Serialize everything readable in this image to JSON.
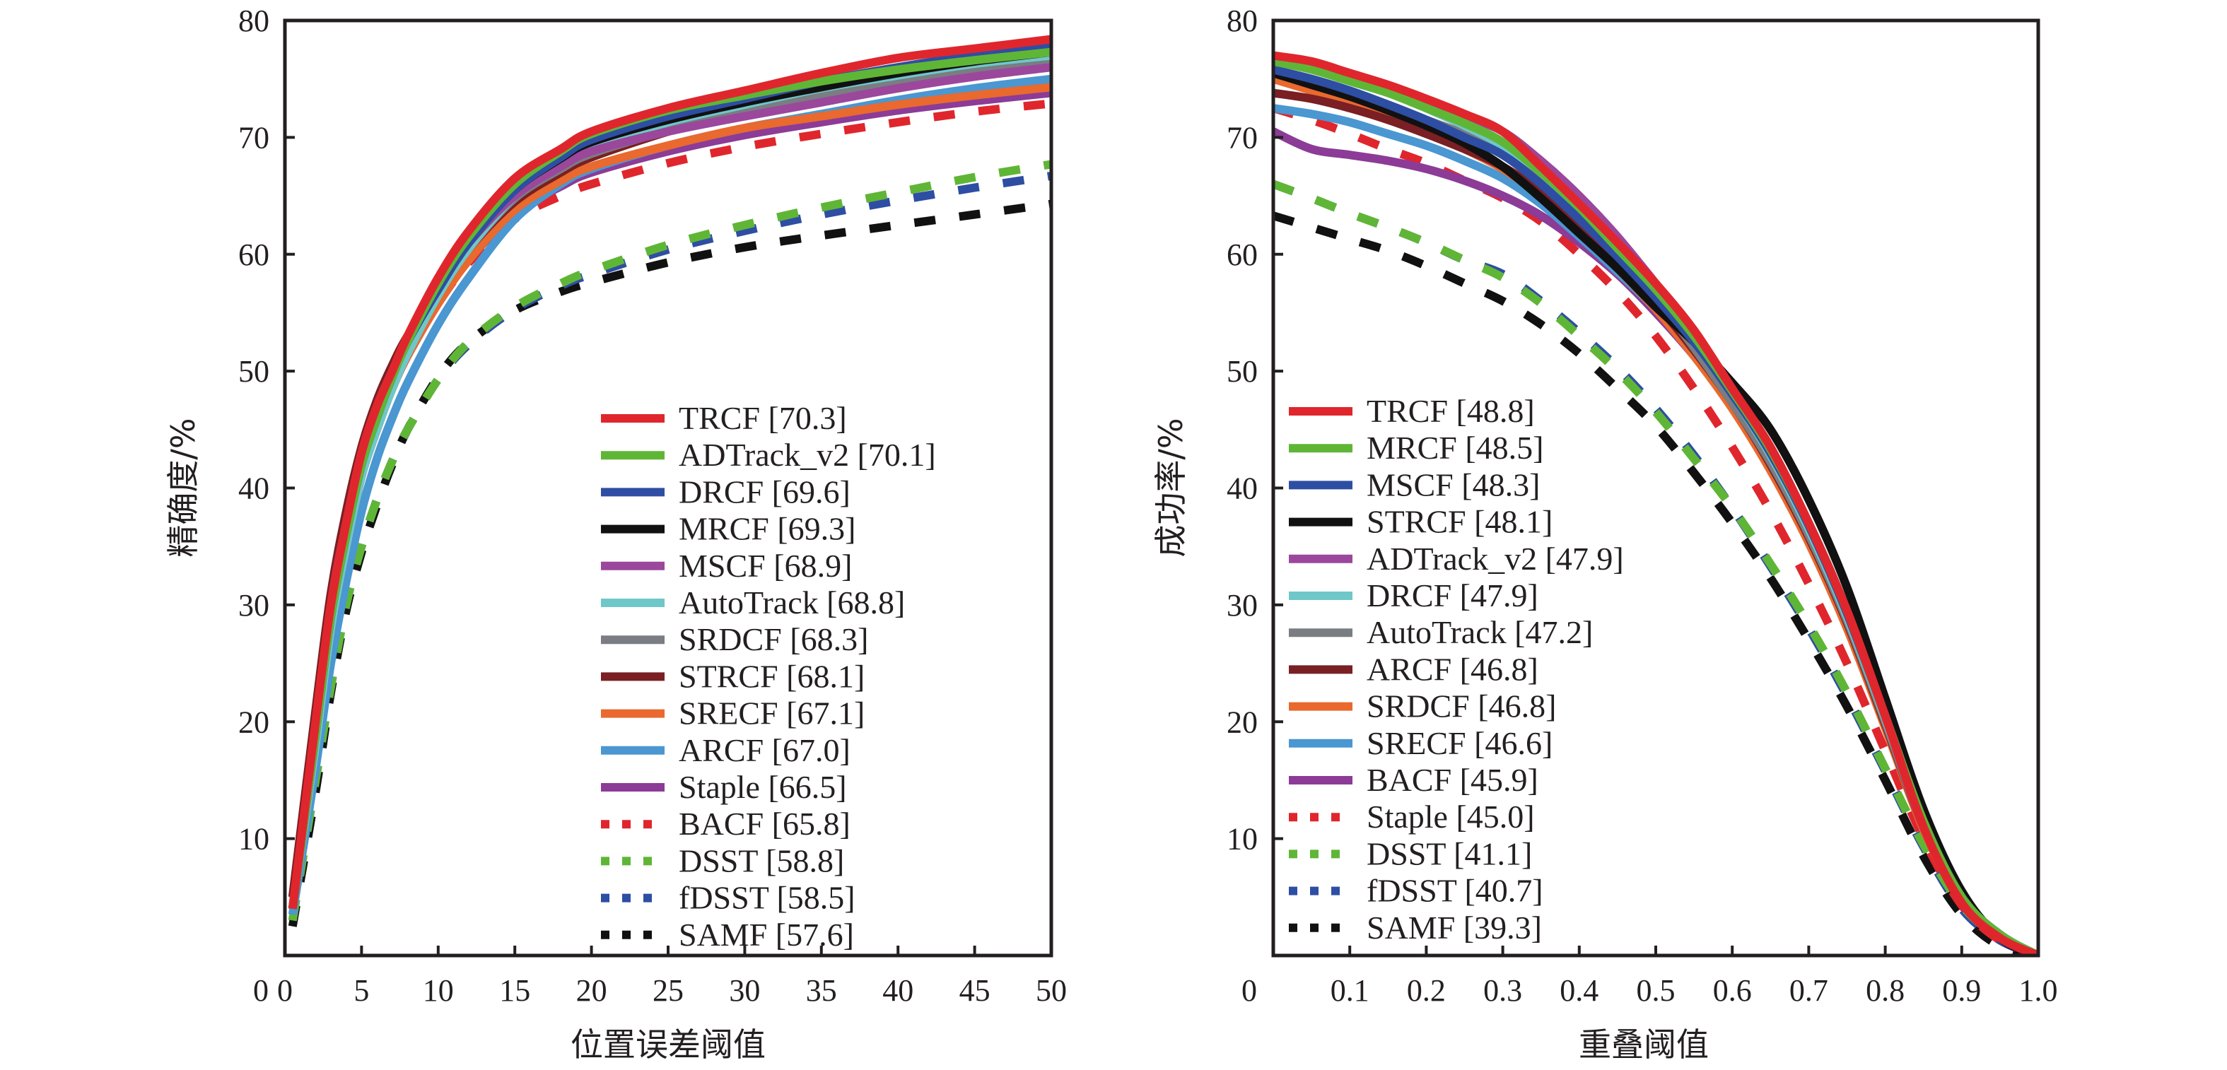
{
  "chart_data": [
    {
      "type": "line",
      "title": "",
      "xlabel": "位置误差阈值",
      "ylabel": "精确度/%",
      "xlim": [
        0,
        50
      ],
      "ylim": [
        0,
        80
      ],
      "xticks": [
        "0",
        "5",
        "10",
        "15",
        "20",
        "25",
        "30",
        "35",
        "40",
        "45",
        "50"
      ],
      "xtick_values": [
        0,
        5,
        10,
        15,
        20,
        25,
        30,
        35,
        40,
        45,
        50
      ],
      "yticks": [
        "10",
        "20",
        "30",
        "40",
        "50",
        "60",
        "70",
        "80"
      ],
      "ytick_values": [
        10,
        20,
        30,
        40,
        50,
        60,
        70,
        80
      ],
      "x_origin_label": "0",
      "grid": false,
      "legend_position": "lower-right",
      "x": [
        0.5,
        2,
        3,
        4,
        5,
        6,
        7,
        8,
        10,
        12,
        15,
        18,
        20,
        25,
        30,
        35,
        40,
        45,
        50
      ],
      "series": [
        {
          "name": "TRCF",
          "score": "70.3",
          "color": "#e0262d",
          "dash": "solid",
          "values": [
            4,
            20,
            30,
            37,
            43,
            47,
            50,
            53,
            58,
            62,
            66.5,
            69,
            70.5,
            72.5,
            74,
            75.5,
            76.8,
            77.6,
            78.4
          ]
        },
        {
          "name": "ADTrack_v2",
          "score": "70.1",
          "color": "#5fb636",
          "dash": "solid",
          "values": [
            4,
            19,
            29,
            36,
            42,
            46,
            49.5,
            52.5,
            57.5,
            61.5,
            66,
            68.8,
            70.3,
            72.3,
            73.6,
            74.8,
            75.8,
            76.6,
            77.3
          ]
        },
        {
          "name": "DRCF",
          "score": "69.6",
          "color": "#2e4ea3",
          "dash": "solid",
          "values": [
            4,
            19,
            29,
            36,
            42,
            46,
            49.5,
            52.5,
            57,
            61,
            65.5,
            68.3,
            69.8,
            71.8,
            73.3,
            74.8,
            76,
            77,
            77.8
          ]
        },
        {
          "name": "MRCF",
          "score": "69.3",
          "color": "#111111",
          "dash": "solid",
          "values": [
            4,
            19,
            29,
            36,
            42,
            46,
            49.5,
            52.5,
            57,
            61,
            65.5,
            68.2,
            69.6,
            71.5,
            73,
            74.3,
            75.5,
            76.5,
            77.3
          ]
        },
        {
          "name": "MSCF",
          "score": "68.9",
          "color": "#9b479c",
          "dash": "solid",
          "values": [
            4,
            19,
            30,
            37,
            43,
            47,
            50,
            52.8,
            57.5,
            61,
            65,
            67.5,
            68.8,
            70.5,
            71.8,
            73,
            74.2,
            75.2,
            76
          ]
        },
        {
          "name": "AutoTrack",
          "score": "68.8",
          "color": "#6fc7c9",
          "dash": "solid",
          "values": [
            4,
            18,
            28,
            35,
            41,
            45,
            48.5,
            51.5,
            56.5,
            60.5,
            65,
            67.8,
            69.3,
            71.3,
            72.8,
            74.2,
            75.3,
            76.3,
            77
          ]
        },
        {
          "name": "SRDCF",
          "score": "68.3",
          "color": "#7a7d82",
          "dash": "solid",
          "values": [
            4,
            19,
            29,
            36,
            42,
            46,
            49.5,
            52.3,
            56.8,
            60.5,
            64.8,
            67.3,
            68.6,
            70.6,
            72.2,
            73.6,
            74.8,
            75.8,
            76.6
          ]
        },
        {
          "name": "STRCF",
          "score": "68.1",
          "color": "#7a1f23",
          "dash": "solid",
          "values": [
            5,
            21,
            31,
            38,
            43.5,
            47.5,
            50.5,
            53,
            57,
            60.5,
            64.5,
            67,
            68.3,
            70.5,
            72.3,
            73.8,
            75.5,
            76.8,
            78
          ]
        },
        {
          "name": "SRECF",
          "score": "67.1",
          "color": "#e9692e",
          "dash": "solid",
          "values": [
            4,
            18,
            28,
            35,
            41,
            45,
            48.5,
            51.3,
            55.8,
            59.5,
            63.8,
            66.3,
            67.5,
            69.3,
            70.8,
            71.8,
            72.8,
            73.6,
            74.3
          ]
        },
        {
          "name": "ARCF",
          "score": "67.0",
          "color": "#4a97d1",
          "dash": "solid",
          "values": [
            3.5,
            16,
            25,
            32,
            38,
            42.5,
            46,
            49,
            54,
            58,
            63,
            66,
            67.3,
            69.3,
            70.8,
            72,
            73.2,
            74.2,
            75
          ]
        },
        {
          "name": "Staple",
          "score": "66.5",
          "color": "#8c3b97",
          "dash": "solid",
          "values": [
            4,
            18,
            28,
            35,
            41,
            45,
            48.5,
            51.3,
            55.8,
            59.5,
            63.6,
            65.8,
            67,
            68.8,
            70.2,
            71.3,
            72.3,
            73.1,
            73.8
          ]
        },
        {
          "name": "BACF",
          "score": "65.8",
          "color": "#e0262d",
          "dash": "dashed",
          "values": [
            4,
            18,
            28,
            35,
            41,
            45,
            48.5,
            51.3,
            55.8,
            59.3,
            63,
            65,
            66,
            67.8,
            69.2,
            70.3,
            71.3,
            72.2,
            72.9
          ]
        },
        {
          "name": "DSST",
          "score": "58.8",
          "color": "#5fb636",
          "dash": "dashed",
          "values": [
            3,
            15,
            23,
            30,
            35,
            39,
            42.3,
            45,
            49.3,
            52.5,
            55.5,
            57.5,
            58.6,
            60.8,
            62.5,
            64,
            65.3,
            66.6,
            67.7
          ]
        },
        {
          "name": "fDSST",
          "score": "58.5",
          "color": "#2e4ea3",
          "dash": "dashed",
          "values": [
            3,
            15,
            23,
            30,
            35,
            39,
            42.3,
            45,
            49.3,
            52.3,
            55.3,
            57.3,
            58.3,
            60.4,
            62,
            63.4,
            64.6,
            65.7,
            66.7
          ]
        },
        {
          "name": "SAMF",
          "score": "57.6",
          "color": "#111111",
          "dash": "dashed",
          "values": [
            2.5,
            14,
            22.5,
            29.5,
            34.5,
            38.5,
            42,
            45,
            49.5,
            52.5,
            55.2,
            56.8,
            57.6,
            59.3,
            60.6,
            61.6,
            62.5,
            63.4,
            64.3
          ]
        }
      ]
    },
    {
      "type": "line",
      "title": "",
      "xlabel": "重叠阈值",
      "ylabel": "成功率/%",
      "xlim": [
        0,
        1
      ],
      "ylim": [
        0,
        80
      ],
      "xticks": [
        "0.1",
        "0.2",
        "0.3",
        "0.4",
        "0.5",
        "0.6",
        "0.7",
        "0.8",
        "0.9",
        "1.0"
      ],
      "xtick_values": [
        0.1,
        0.2,
        0.3,
        0.4,
        0.5,
        0.6,
        0.7,
        0.8,
        0.9,
        1.0
      ],
      "yticks": [
        "10",
        "20",
        "30",
        "40",
        "50",
        "60",
        "70",
        "80"
      ],
      "ytick_values": [
        10,
        20,
        30,
        40,
        50,
        60,
        70,
        80
      ],
      "x_origin_label": "0",
      "grid": false,
      "legend_position": "lower-left",
      "x": [
        0,
        0.05,
        0.1,
        0.15,
        0.2,
        0.25,
        0.3,
        0.35,
        0.4,
        0.45,
        0.5,
        0.55,
        0.6,
        0.65,
        0.7,
        0.75,
        0.8,
        0.85,
        0.9,
        0.95,
        1.0
      ],
      "series": [
        {
          "name": "TRCF",
          "score": "48.8",
          "color": "#e0262d",
          "dash": "solid",
          "values": [
            77,
            76.5,
            75.5,
            74.5,
            73.3,
            72,
            70.5,
            67.5,
            64.3,
            61,
            57.5,
            53.5,
            48.5,
            43.5,
            37,
            29.5,
            20.5,
            11,
            4.5,
            1.5,
            0
          ]
        },
        {
          "name": "MRCF",
          "score": "48.5",
          "color": "#5fb636",
          "dash": "solid",
          "values": [
            76.5,
            75.8,
            74.8,
            73.8,
            72.5,
            71.2,
            69.6,
            67,
            64,
            60.5,
            57,
            53,
            48.3,
            43.3,
            37,
            29.5,
            20.5,
            11.5,
            5,
            1.8,
            0
          ]
        },
        {
          "name": "MSCF",
          "score": "48.3",
          "color": "#2e4ea3",
          "dash": "solid",
          "values": [
            75.8,
            75,
            74,
            72.8,
            71.5,
            70,
            68.5,
            66,
            63,
            59.8,
            56.3,
            52.5,
            48,
            43,
            36.8,
            29.3,
            20.5,
            11.5,
            5,
            1.8,
            0
          ]
        },
        {
          "name": "STRCF",
          "score": "48.1",
          "color": "#111111",
          "dash": "solid",
          "values": [
            75.5,
            74.5,
            73.5,
            72.3,
            71,
            69.5,
            67.5,
            64.8,
            61.8,
            58.8,
            55.5,
            52.5,
            49,
            45,
            39,
            31.5,
            22,
            12.5,
            5.5,
            1.5,
            0
          ]
        },
        {
          "name": "ADTrack_v2",
          "score": "47.9",
          "color": "#9b479c",
          "dash": "solid",
          "values": [
            76.5,
            76,
            75.3,
            74.2,
            73,
            71.8,
            70.5,
            68,
            65,
            61.5,
            57.5,
            53.3,
            48.5,
            43,
            37,
            29.5,
            20.5,
            11.5,
            5,
            1.5,
            0
          ]
        },
        {
          "name": "DRCF",
          "score": "47.9",
          "color": "#6fc7c9",
          "dash": "solid",
          "values": [
            77,
            76.3,
            75.3,
            74,
            72.5,
            71,
            69.3,
            67,
            63.8,
            60.5,
            56.8,
            52.5,
            48,
            42.8,
            36.5,
            29,
            20.3,
            11.3,
            4.8,
            1.5,
            0
          ]
        },
        {
          "name": "AutoTrack",
          "score": "47.2",
          "color": "#7a7d82",
          "dash": "solid",
          "values": [
            75.5,
            74.8,
            73.8,
            72.8,
            71.5,
            70.3,
            68.8,
            66.3,
            63.3,
            60,
            56.3,
            52,
            47.3,
            42.2,
            36,
            28.7,
            20,
            11,
            4.8,
            1.5,
            0
          ]
        },
        {
          "name": "ARCF",
          "score": "46.8",
          "color": "#7a1f23",
          "dash": "solid",
          "values": [
            73.8,
            73.3,
            72.5,
            71.5,
            70.3,
            69,
            67.5,
            65.3,
            62.3,
            59.3,
            55.8,
            51.8,
            47.3,
            42,
            35.8,
            28.5,
            19.8,
            11,
            4.8,
            1.5,
            0
          ]
        },
        {
          "name": "SRDCF",
          "score": "46.8",
          "color": "#e9692e",
          "dash": "solid",
          "values": [
            75,
            74,
            73,
            71.8,
            70.5,
            69,
            67.3,
            65,
            62,
            58.8,
            55.3,
            51.3,
            46.8,
            41.5,
            35.3,
            28,
            19.5,
            10.8,
            4.6,
            1.5,
            0
          ]
        },
        {
          "name": "SRECF",
          "score": "46.6",
          "color": "#4a97d1",
          "dash": "solid",
          "values": [
            72.5,
            72,
            71.3,
            70.3,
            69.3,
            68,
            66.5,
            64.3,
            61.5,
            58.5,
            55.3,
            51.5,
            47.3,
            42.3,
            36,
            28.7,
            20,
            11,
            4.8,
            1.5,
            0
          ]
        },
        {
          "name": "BACF",
          "score": "45.9",
          "color": "#8c3b97",
          "dash": "solid",
          "values": [
            70.5,
            69,
            68.5,
            68,
            67.3,
            66.3,
            65,
            63.3,
            61,
            58.3,
            55,
            51.3,
            47,
            42,
            36,
            28.7,
            20,
            11,
            4.8,
            1.5,
            0
          ]
        },
        {
          "name": "Staple",
          "score": "45.0",
          "color": "#e0262d",
          "dash": "dashed",
          "values": [
            72.5,
            71.5,
            70.3,
            69,
            67.8,
            66.3,
            64.8,
            62.8,
            60,
            56.8,
            53,
            48.5,
            43.5,
            38,
            31.8,
            25,
            17.5,
            10,
            4.3,
            1.3,
            0
          ]
        },
        {
          "name": "DSST",
          "score": "41.1",
          "color": "#5fb636",
          "dash": "dashed",
          "values": [
            66,
            64.8,
            63.5,
            62.3,
            61,
            59.5,
            58,
            55.8,
            53,
            50,
            46.5,
            42.5,
            38.3,
            33.5,
            28.3,
            22.5,
            16,
            9.5,
            4.3,
            1.5,
            0
          ]
        },
        {
          "name": "fDSST",
          "score": "40.7",
          "color": "#2e4ea3",
          "dash": "dashed",
          "values": [
            66,
            64.8,
            63.5,
            62.3,
            61,
            59.5,
            58.3,
            56,
            53.3,
            50.3,
            46.8,
            42.8,
            38.3,
            33.3,
            28,
            22.2,
            15.8,
            9.3,
            4,
            1.3,
            0
          ]
        },
        {
          "name": "SAMF",
          "score": "39.3",
          "color": "#111111",
          "dash": "dashed",
          "values": [
            63.3,
            62.3,
            61.3,
            60.3,
            59,
            57.5,
            56,
            54,
            51.5,
            48.5,
            45.3,
            41.3,
            37,
            32.3,
            27,
            21.3,
            15,
            8.5,
            3.5,
            0.8,
            0
          ]
        }
      ]
    }
  ]
}
